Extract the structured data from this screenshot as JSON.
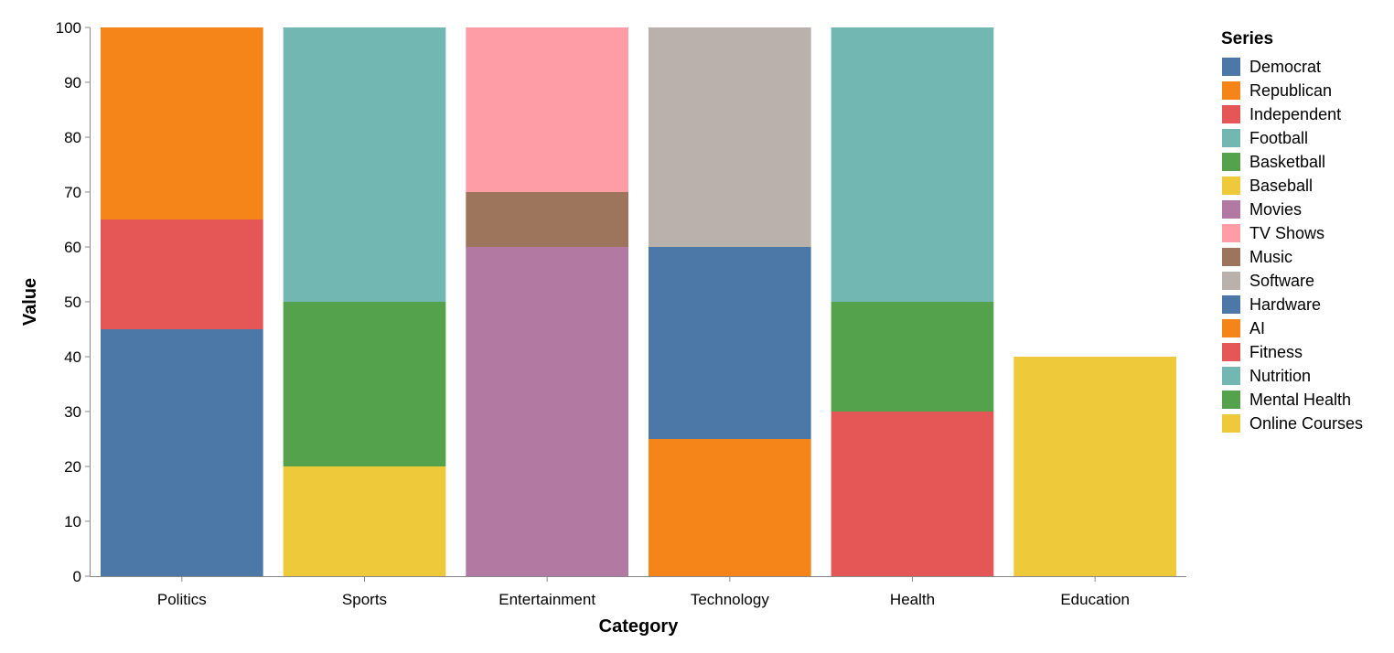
{
  "chart_data": {
    "type": "bar",
    "stacked": true,
    "xlabel": "Category",
    "ylabel": "Value",
    "ylim": [
      0,
      100
    ],
    "yticks": [
      "0",
      "10",
      "20",
      "30",
      "40",
      "50",
      "60",
      "70",
      "80",
      "90",
      "100"
    ],
    "categories": [
      "Politics",
      "Sports",
      "Entertainment",
      "Technology",
      "Health",
      "Education"
    ],
    "grid": false,
    "legend": {
      "title": "Series",
      "placement": "right"
    },
    "series": [
      {
        "name": "Democrat",
        "color": "#4c78a8",
        "values": [
          45,
          0,
          0,
          0,
          0,
          0
        ]
      },
      {
        "name": "Republican",
        "color": "#f58518",
        "values": [
          35,
          0,
          0,
          0,
          0,
          0
        ]
      },
      {
        "name": "Independent",
        "color": "#e45756",
        "values": [
          20,
          0,
          0,
          0,
          0,
          0
        ]
      },
      {
        "name": "Football",
        "color": "#72b7b2",
        "values": [
          0,
          50,
          0,
          0,
          0,
          0
        ]
      },
      {
        "name": "Basketball",
        "color": "#54a24b",
        "values": [
          0,
          30,
          0,
          0,
          0,
          0
        ]
      },
      {
        "name": "Baseball",
        "color": "#eeca3b",
        "values": [
          0,
          20,
          0,
          0,
          0,
          0
        ]
      },
      {
        "name": "Movies",
        "color": "#b279a2",
        "values": [
          0,
          0,
          60,
          0,
          0,
          0
        ]
      },
      {
        "name": "TV Shows",
        "color": "#ff9da6",
        "values": [
          0,
          0,
          30,
          0,
          0,
          0
        ]
      },
      {
        "name": "Music",
        "color": "#9d755d",
        "values": [
          0,
          0,
          10,
          0,
          0,
          0
        ]
      },
      {
        "name": "Software",
        "color": "#bab0ac",
        "values": [
          0,
          0,
          0,
          40,
          0,
          0
        ]
      },
      {
        "name": "Hardware",
        "color": "#4c78a8",
        "values": [
          0,
          0,
          0,
          35,
          0,
          0
        ]
      },
      {
        "name": "AI",
        "color": "#f58518",
        "values": [
          0,
          0,
          0,
          25,
          0,
          0
        ]
      },
      {
        "name": "Fitness",
        "color": "#e45756",
        "values": [
          0,
          0,
          0,
          0,
          30,
          0
        ]
      },
      {
        "name": "Nutrition",
        "color": "#72b7b2",
        "values": [
          0,
          0,
          0,
          0,
          50,
          0
        ]
      },
      {
        "name": "Mental Health",
        "color": "#54a24b",
        "values": [
          0,
          0,
          0,
          0,
          20,
          0
        ]
      },
      {
        "name": "Online Courses",
        "color": "#eeca3b",
        "values": [
          0,
          0,
          0,
          0,
          0,
          40
        ]
      }
    ],
    "stack_order_bottom_to_top": [
      [
        "Democrat",
        "Independent",
        "Republican"
      ],
      [
        "Baseball",
        "Basketball",
        "Football"
      ],
      [
        "Movies",
        "Music",
        "TV Shows"
      ],
      [
        "AI",
        "Hardware",
        "Software"
      ],
      [
        "Fitness",
        "Mental Health",
        "Nutrition"
      ],
      [
        "Online Courses"
      ]
    ]
  }
}
